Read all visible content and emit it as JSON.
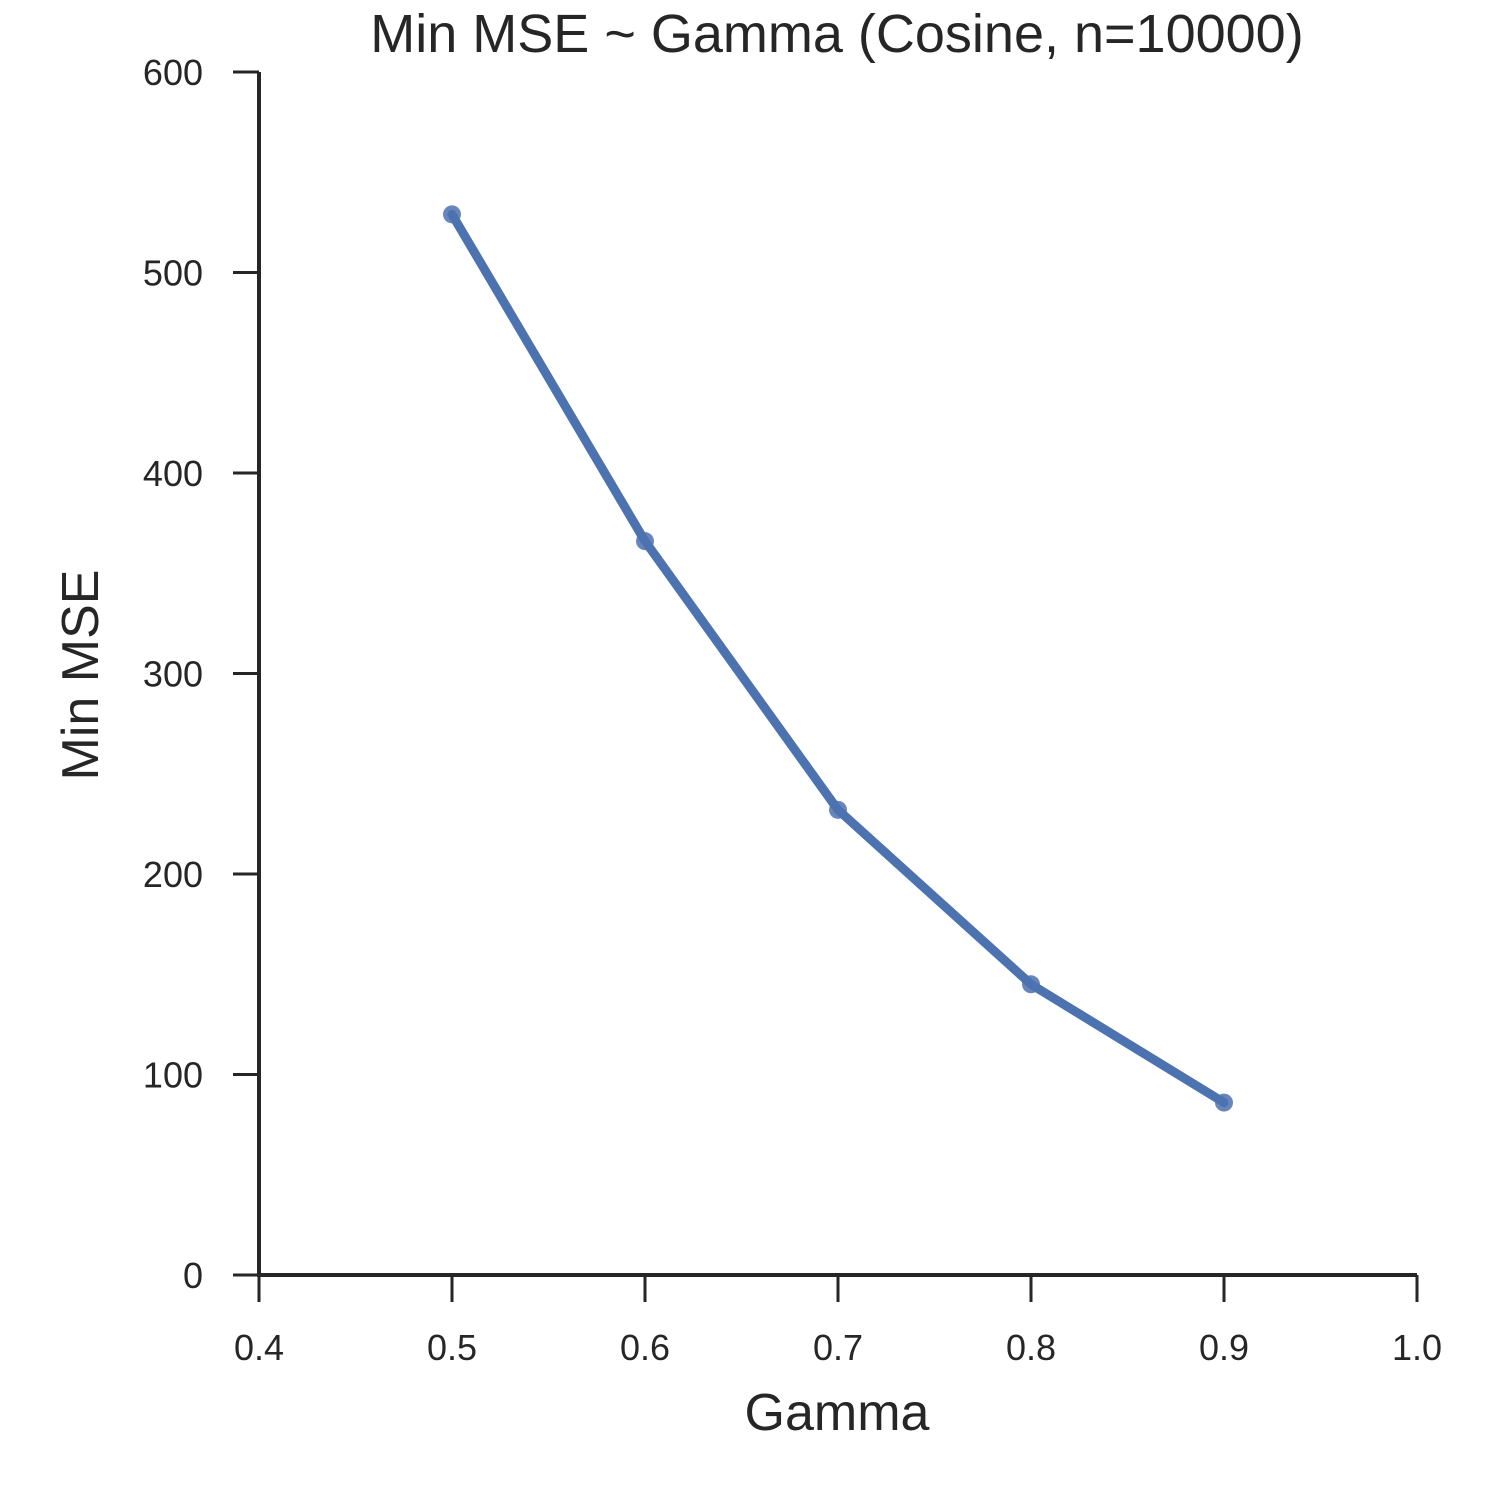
{
  "chart_data": {
    "type": "line",
    "title": "Min MSE ~ Gamma (Cosine, n=10000)",
    "xlabel": "Gamma",
    "ylabel": "Min MSE",
    "xlim": [
      0.4,
      1.0
    ],
    "ylim": [
      0,
      600
    ],
    "x_ticks": [
      0.4,
      0.5,
      0.6,
      0.7,
      0.8,
      0.9,
      1.0
    ],
    "x_tick_labels": [
      "0.4",
      "0.5",
      "0.6",
      "0.7",
      "0.8",
      "0.9",
      "1.0"
    ],
    "y_ticks": [
      0,
      100,
      200,
      300,
      400,
      500,
      600
    ],
    "y_tick_labels": [
      "0",
      "100",
      "200",
      "300",
      "400",
      "500",
      "600"
    ],
    "grid": false,
    "series": [
      {
        "color": "#4c72b0",
        "x": [
          0.5,
          0.6,
          0.7,
          0.8,
          0.9
        ],
        "y": [
          529,
          366,
          232,
          145,
          86
        ]
      }
    ]
  }
}
